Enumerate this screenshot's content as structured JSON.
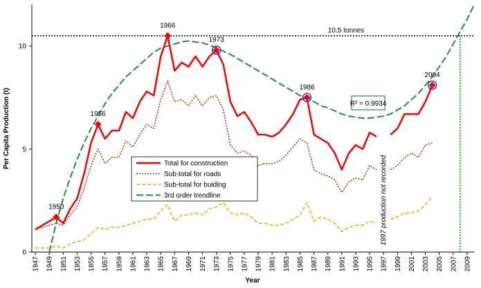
{
  "chart_data": {
    "type": "line",
    "x_label": "Year",
    "y_label": "Per Capita Production (t)",
    "x": [
      1947,
      1948,
      1949,
      1950,
      1951,
      1952,
      1953,
      1954,
      1955,
      1956,
      1957,
      1958,
      1959,
      1960,
      1961,
      1962,
      1963,
      1964,
      1965,
      1966,
      1967,
      1968,
      1969,
      1970,
      1971,
      1972,
      1973,
      1974,
      1975,
      1976,
      1977,
      1978,
      1979,
      1980,
      1981,
      1982,
      1983,
      1984,
      1985,
      1986,
      1987,
      1988,
      1989,
      1990,
      1991,
      1992,
      1993,
      1994,
      1995,
      1996,
      1997,
      1998,
      1999,
      2000,
      2001,
      2002,
      2003,
      2004,
      2005,
      2006,
      2007,
      2008,
      2009,
      2010
    ],
    "series": [
      {
        "name": "Total for construction",
        "color": "#ff0000",
        "style": "solid",
        "values": [
          1.1,
          1.3,
          1.5,
          1.7,
          1.4,
          2.1,
          2.6,
          3.8,
          5.3,
          6.2,
          5.5,
          5.9,
          5.9,
          6.8,
          6.5,
          7.3,
          7.8,
          7.6,
          9.5,
          10.5,
          8.8,
          9.2,
          9.0,
          9.5,
          9.0,
          9.5,
          9.8,
          9.1,
          7.3,
          6.6,
          6.8,
          6.3,
          5.7,
          5.7,
          5.6,
          5.8,
          6.2,
          6.7,
          7.4,
          7.5,
          5.7,
          5.5,
          5.3,
          4.8,
          4.0,
          4.8,
          5.2,
          5.0,
          5.8,
          5.6,
          null,
          5.7,
          6.0,
          6.7,
          6.7,
          6.7,
          7.3,
          8.1,
          null,
          null,
          null,
          null,
          null,
          null
        ]
      },
      {
        "name": "Sub-total for roads",
        "color": "#993300",
        "style": "dotted",
        "values": [
          1.1,
          1.2,
          1.3,
          1.4,
          1.3,
          1.8,
          2.2,
          3.1,
          4.2,
          5.0,
          4.3,
          4.6,
          4.6,
          5.4,
          5.1,
          5.7,
          6.2,
          6.0,
          7.4,
          8.3,
          7.3,
          7.4,
          7.1,
          7.6,
          7.1,
          7.5,
          7.6,
          6.9,
          5.2,
          4.8,
          4.9,
          4.7,
          4.2,
          4.3,
          4.3,
          4.4,
          4.7,
          5.1,
          5.5,
          5.3,
          4.0,
          3.8,
          3.7,
          3.5,
          2.9,
          3.4,
          3.6,
          3.5,
          4.2,
          4.0,
          null,
          4.0,
          4.2,
          4.6,
          4.8,
          4.6,
          5.2,
          5.3,
          null,
          null,
          null,
          null,
          null,
          null
        ]
      },
      {
        "name": "Sub-total for buiding",
        "color": "#ffa500",
        "style": "dashed",
        "values": [
          0.2,
          0.2,
          0.2,
          0.3,
          0.2,
          0.4,
          0.5,
          0.6,
          0.9,
          1.2,
          1.1,
          1.2,
          1.2,
          1.3,
          1.4,
          1.5,
          1.6,
          1.6,
          2.0,
          2.3,
          1.5,
          1.8,
          1.8,
          1.9,
          1.8,
          2.1,
          2.2,
          2.4,
          1.9,
          1.8,
          1.9,
          1.7,
          1.4,
          1.4,
          1.3,
          1.3,
          1.4,
          1.6,
          1.8,
          2.4,
          1.5,
          1.7,
          1.6,
          1.4,
          1.0,
          1.2,
          1.3,
          1.3,
          1.5,
          1.4,
          null,
          1.6,
          1.7,
          1.9,
          1.9,
          2.0,
          2.3,
          2.7,
          null,
          null,
          null,
          null,
          null,
          null
        ]
      },
      {
        "name": "3rd order trendline",
        "color": "#228b50",
        "style": "longdash",
        "values": [
          null,
          null,
          0.0,
          1.4,
          2.6,
          3.6,
          4.5,
          5.3,
          6.0,
          6.6,
          7.2,
          7.7,
          8.1,
          8.5,
          8.8,
          9.1,
          9.4,
          9.7,
          9.9,
          10.0,
          10.1,
          10.2,
          10.25,
          10.2,
          10.15,
          10.05,
          9.9,
          9.75,
          9.6,
          9.4,
          9.2,
          9.0,
          8.8,
          8.6,
          8.4,
          8.2,
          8.0,
          7.8,
          7.6,
          7.5,
          7.3,
          7.1,
          7.0,
          6.85,
          6.7,
          6.6,
          6.55,
          6.5,
          6.5,
          6.55,
          6.6,
          6.7,
          6.9,
          7.1,
          7.4,
          7.7,
          8.1,
          8.5,
          9.0,
          9.5,
          10.1,
          10.7,
          11.3,
          12.0
        ]
      }
    ],
    "xlim": [
      1946.5,
      2010
    ],
    "xticks": [
      1947,
      1949,
      1951,
      1953,
      1955,
      1957,
      1959,
      1961,
      1963,
      1965,
      1967,
      1969,
      1971,
      1973,
      1975,
      1977,
      1979,
      1981,
      1983,
      1985,
      1987,
      1989,
      1991,
      1993,
      1995,
      1997,
      1999,
      2001,
      2003,
      2005,
      2007,
      2009
    ],
    "ylim": [
      0,
      12
    ],
    "yticks": [
      0,
      5,
      10
    ],
    "hline": {
      "value": 10.5,
      "label": "10.5 tonnes",
      "color": "#000000"
    },
    "vline": {
      "value": 2008,
      "color": "#008000"
    },
    "r_squared": "R² = 0.9934",
    "note": {
      "text": "1997 production not recorded",
      "x": 1997
    },
    "highlights": [
      {
        "label": "1950",
        "x": 1950,
        "circled": false
      },
      {
        "label": "1956",
        "x": 1956,
        "circled": false
      },
      {
        "label": "1966",
        "x": 1966,
        "circled": false
      },
      {
        "label": "1973",
        "x": 1973,
        "circled": true
      },
      {
        "label": "1986",
        "x": 1986,
        "circled": true
      },
      {
        "label": "2004",
        "x": 2004,
        "circled": true
      }
    ]
  }
}
